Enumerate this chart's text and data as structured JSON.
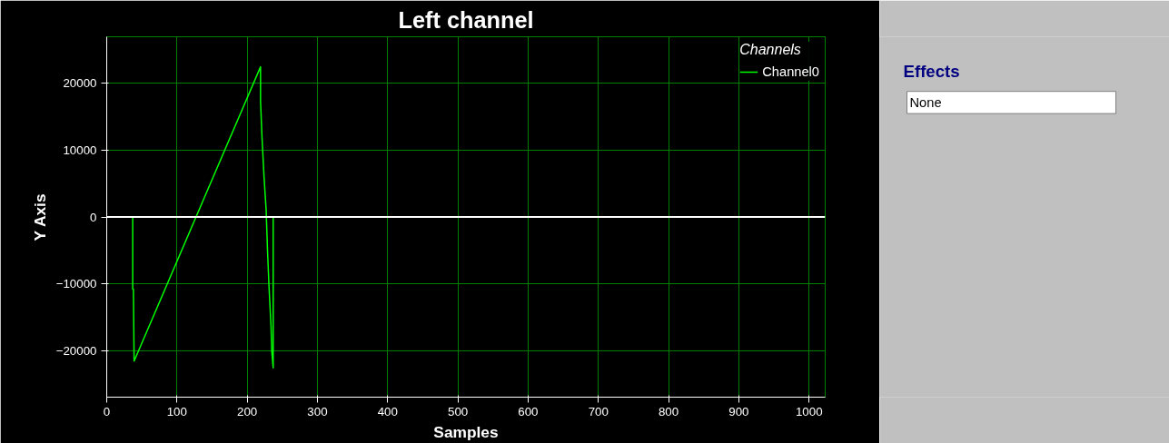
{
  "chart_data": {
    "type": "line",
    "title": "Left channel",
    "xlabel": "Samples",
    "ylabel": "Y Axis",
    "legend_title": "Channels",
    "series": [
      {
        "name": "Channel0",
        "color": "#00ff00",
        "x": [
          0,
          37,
          37,
          38,
          39,
          219,
          219,
          221,
          224,
          227,
          229,
          231,
          234,
          235,
          237,
          237,
          1023
        ],
        "values": [
          0,
          0,
          -10800,
          -10800,
          -21600,
          22500,
          17400,
          12100,
          6000,
          1000,
          -5200,
          -10300,
          -16500,
          -20200,
          -22600,
          0,
          0
        ]
      }
    ],
    "xlim": [
      0,
      1023
    ],
    "ylim": [
      -27000,
      27000
    ],
    "xticks": [
      0,
      100,
      200,
      300,
      400,
      500,
      600,
      700,
      800,
      900,
      1000
    ],
    "yticks": [
      -20000,
      -10000,
      0,
      10000,
      20000
    ],
    "ref_lines": [
      {
        "axis": "y",
        "value": 0,
        "color": "#ffffff"
      }
    ],
    "grid": true,
    "legend": "top right",
    "annotations": [
      "Effects",
      "None"
    ]
  }
}
